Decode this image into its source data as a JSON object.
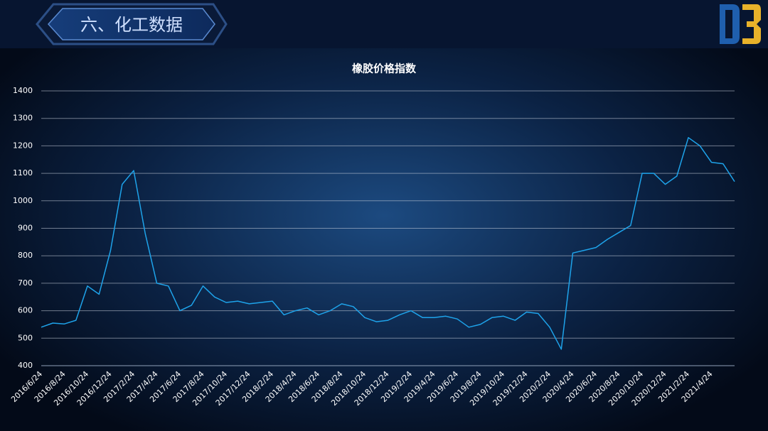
{
  "header": {
    "title": "六、化工数据"
  },
  "chart_data": {
    "type": "line",
    "title": "橡胶价格指数",
    "categories": [
      "2016/6/24",
      null,
      "2016/8/24",
      null,
      "2016/10/24",
      null,
      "2016/12/24",
      null,
      "2017/2/24",
      null,
      "2017/4/24",
      null,
      "2017/6/24",
      null,
      "2017/8/24",
      null,
      "2017/10/24",
      null,
      "2017/12/24",
      null,
      "2018/2/24",
      null,
      "2018/4/24",
      null,
      "2018/6/24",
      null,
      "2018/8/24",
      null,
      "2018/10/24",
      null,
      "2018/12/24",
      null,
      "2019/2/24",
      null,
      "2019/4/24",
      null,
      "2019/6/24",
      null,
      "2019/8/24",
      null,
      "2019/10/24",
      null,
      "2019/12/24",
      null,
      "2020/2/24",
      null,
      "2020/4/24",
      null,
      "2020/6/24",
      null,
      "2020/8/24",
      null,
      "2020/10/24",
      null,
      "2020/12/24",
      null,
      "2021/2/24",
      null,
      "2021/4/24",
      null,
      null
    ],
    "values": [
      540,
      555,
      552,
      565,
      690,
      660,
      820,
      1060,
      1110,
      880,
      700,
      690,
      600,
      620,
      690,
      650,
      630,
      635,
      625,
      630,
      635,
      585,
      600,
      610,
      585,
      600,
      625,
      615,
      575,
      560,
      565,
      585,
      600,
      575,
      575,
      580,
      570,
      540,
      550,
      575,
      580,
      565,
      595,
      590,
      540,
      460,
      810,
      820,
      830,
      860,
      885,
      910,
      1100,
      1100,
      1060,
      1090,
      1230,
      1200,
      1140,
      1135,
      1070
    ],
    "color": "#1ea3ea",
    "ylim": [
      400,
      1400
    ],
    "yticks": [
      400,
      500,
      600,
      700,
      800,
      900,
      1000,
      1100,
      1200,
      1300,
      1400
    ],
    "grid": true
  }
}
